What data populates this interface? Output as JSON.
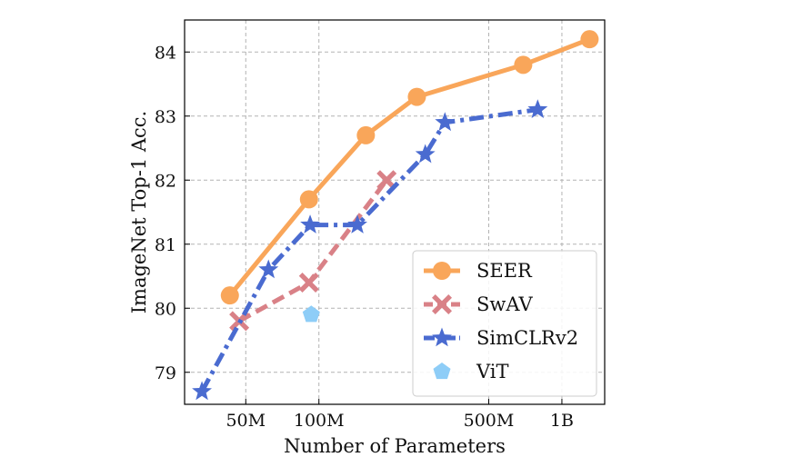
{
  "chart_data": {
    "type": "line",
    "xlabel": "Number of Parameters",
    "ylabel": "ImageNet Top-1 Acc.",
    "xscale": "log",
    "xlim": [
      28,
      1500
    ],
    "ylim": [
      78.5,
      84.5
    ],
    "xticks": [
      {
        "value": 50,
        "label": "50M"
      },
      {
        "value": 100,
        "label": "100M"
      },
      {
        "value": 500,
        "label": "500M"
      },
      {
        "value": 1000,
        "label": "1B"
      }
    ],
    "yticks": [
      {
        "value": 79,
        "label": "79"
      },
      {
        "value": 80,
        "label": "80"
      },
      {
        "value": 81,
        "label": "81"
      },
      {
        "value": 82,
        "label": "82"
      },
      {
        "value": 83,
        "label": "83"
      },
      {
        "value": 84,
        "label": "84"
      }
    ],
    "grid": true,
    "legend_position": "bottom-right",
    "series": [
      {
        "name": "SEER",
        "color": "#f9a65a",
        "marker": "circle",
        "line": "solid",
        "x": [
          43,
          91,
          156,
          253,
          693,
          1300
        ],
        "y": [
          80.2,
          81.7,
          82.7,
          83.3,
          83.8,
          84.2
        ]
      },
      {
        "name": "SwAV",
        "color": "#d98187",
        "marker": "x",
        "line": "dashed",
        "x": [
          47,
          91,
          190
        ],
        "y": [
          79.8,
          80.4,
          82.0
        ]
      },
      {
        "name": "SimCLRv2",
        "color": "#4a6bd0",
        "marker": "star",
        "line": "dashdot",
        "x": [
          33,
          62,
          92,
          144,
          274,
          330,
          795
        ],
        "y": [
          78.7,
          80.6,
          81.3,
          81.3,
          82.4,
          82.9,
          83.1
        ]
      },
      {
        "name": "ViT",
        "color": "#8ecdf7",
        "marker": "pentagon",
        "line": "none",
        "x": [
          93
        ],
        "y": [
          79.9
        ]
      }
    ]
  }
}
